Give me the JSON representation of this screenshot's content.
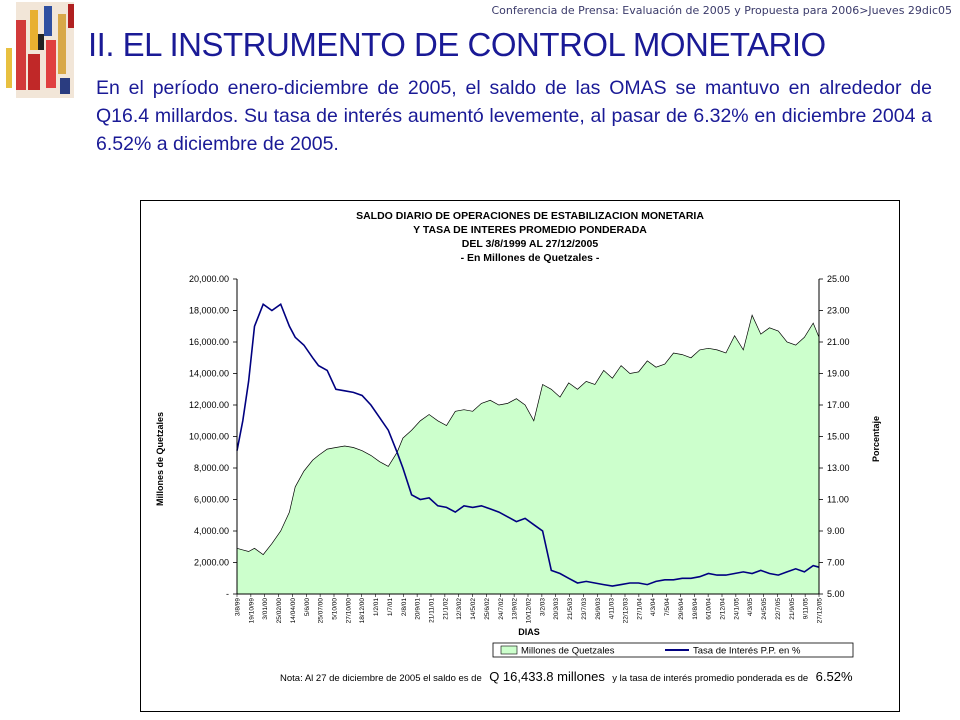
{
  "header": {
    "text": "Conferencia de Prensa: Evaluación de 2005 y Propuesta para 2006>Jueves 29dic05"
  },
  "title": "II. EL INSTRUMENTO DE CONTROL MONETARIO",
  "body_text": "En el período enero-diciembre de 2005, el saldo de las OMAS se mantuvo en alrededor de Q16.4 millardos. Su tasa de interés aumentó levemente, al pasar de 6.32% en diciembre 2004 a 6.52% a diciembre de 2005.",
  "chart_data": {
    "type": "area",
    "title_lines": [
      "SALDO DIARIO DE OPERACIONES DE ESTABILIZACION MONETARIA",
      "Y TASA DE INTERES PROMEDIO PONDERADA",
      "DEL 3/8/1999 AL 27/12/2005",
      "- En Millones de Quetzales -"
    ],
    "xlabel": "DIAS",
    "ylabel": "Millones de Quetzales",
    "ylabel_right": "Porcentaje",
    "ylim": [
      0,
      20000
    ],
    "ylim_right": [
      5,
      25
    ],
    "y_ticks": [
      "-",
      "2,000.00",
      "4,000.00",
      "6,000.00",
      "8,000.00",
      "10,000.00",
      "12,000.00",
      "14,000.00",
      "16,000.00",
      "18,000.00",
      "20,000.00"
    ],
    "y_ticks_right": [
      "5.00",
      "7.00",
      "9.00",
      "11.00",
      "13.00",
      "15.00",
      "17.00",
      "19.00",
      "21.00",
      "23.00",
      "25.00"
    ],
    "x_tick_labels": [
      "3/8/99",
      "19/10/99",
      "3/01/00",
      "25/02/00",
      "14/04/00",
      "5/6/00",
      "25/07/00",
      "5/10/00",
      "27/10/00",
      "18/12/00",
      "1/2/01",
      "1/7/01",
      "2/8/01",
      "20/9/01",
      "21/11/01",
      "21/1/02",
      "12/3/02",
      "14/5/02",
      "25/6/02",
      "24/7/02",
      "13/9/02",
      "10/12/02",
      "3/2/03",
      "20/3/03",
      "21/5/03",
      "23/7/03",
      "26/9/03",
      "4/11/03",
      "22/12/03",
      "27/1/04",
      "4/3/04",
      "7/5/04",
      "29/6/04",
      "19/8/04",
      "6/10/04",
      "2/12/04",
      "24/1/05",
      "4/3/05",
      "24/5/05",
      "22/7/05",
      "21/9/05",
      "9/11/05",
      "27/12/05"
    ],
    "x": [
      0,
      0.01,
      0.02,
      0.03,
      0.045,
      0.06,
      0.075,
      0.09,
      0.1,
      0.115,
      0.13,
      0.14,
      0.155,
      0.17,
      0.185,
      0.2,
      0.215,
      0.23,
      0.245,
      0.26,
      0.275,
      0.285,
      0.3,
      0.315,
      0.33,
      0.345,
      0.36,
      0.375,
      0.39,
      0.405,
      0.42,
      0.435,
      0.45,
      0.465,
      0.48,
      0.495,
      0.51,
      0.525,
      0.54,
      0.555,
      0.57,
      0.585,
      0.6,
      0.615,
      0.63,
      0.645,
      0.66,
      0.675,
      0.69,
      0.705,
      0.72,
      0.735,
      0.75,
      0.765,
      0.78,
      0.795,
      0.81,
      0.825,
      0.84,
      0.855,
      0.87,
      0.885,
      0.9,
      0.915,
      0.93,
      0.945,
      0.96,
      0.975,
      0.99,
      1.0
    ],
    "series": [
      {
        "name": "Millones de Quetzales",
        "color": "#ccffcc",
        "values": [
          2900,
          2800,
          2700,
          2900,
          2500,
          3200,
          4000,
          5200,
          6800,
          7800,
          8500,
          8800,
          9200,
          9300,
          9400,
          9300,
          9100,
          8800,
          8400,
          8100,
          9000,
          9900,
          10400,
          11000,
          11400,
          11000,
          10700,
          11600,
          11700,
          11600,
          12100,
          12300,
          12000,
          12100,
          12400,
          12000,
          11000,
          13300,
          13000,
          12500,
          13400,
          13000,
          13500,
          13300,
          14200,
          13700,
          14500,
          14000,
          14100,
          14800,
          14400,
          14600,
          15300,
          15200,
          15000,
          15500,
          15600,
          15500,
          15300,
          16400,
          15500,
          17700,
          16500,
          16900,
          16700,
          16000,
          15800,
          16300,
          17200,
          16300
        ]
      },
      {
        "name": "Tasa de Interés P.P. en %",
        "color": "#000080",
        "values": [
          14.1,
          16.0,
          18.5,
          22.0,
          23.4,
          23.0,
          23.4,
          22.0,
          21.3,
          20.8,
          20.0,
          19.5,
          19.2,
          18.0,
          17.9,
          17.8,
          17.6,
          17.0,
          16.2,
          15.4,
          14.0,
          13.0,
          11.3,
          11.0,
          11.1,
          10.6,
          10.5,
          10.2,
          10.6,
          10.5,
          10.6,
          10.4,
          10.2,
          9.9,
          9.6,
          9.8,
          9.4,
          9.0,
          6.5,
          6.3,
          6.0,
          5.7,
          5.8,
          5.7,
          5.6,
          5.5,
          5.6,
          5.7,
          5.7,
          5.6,
          5.8,
          5.9,
          5.9,
          6.0,
          6.0,
          6.1,
          6.3,
          6.2,
          6.2,
          6.3,
          6.4,
          6.3,
          6.5,
          6.3,
          6.2,
          6.4,
          6.6,
          6.4,
          6.8,
          6.7
        ]
      }
    ],
    "legend": {
      "placement": "bottom",
      "items": [
        "Millones de Quetzales",
        "Tasa de Interés P.P. en %"
      ]
    },
    "note": {
      "prefix": "Nota: Al 27  de diciembre  de 2005 el saldo es  de",
      "amount": "Q 16,433.8 millones",
      "middle": "y la tasa de interés promedio ponderada es  de",
      "rate": "6.52%"
    },
    "grid": false
  }
}
